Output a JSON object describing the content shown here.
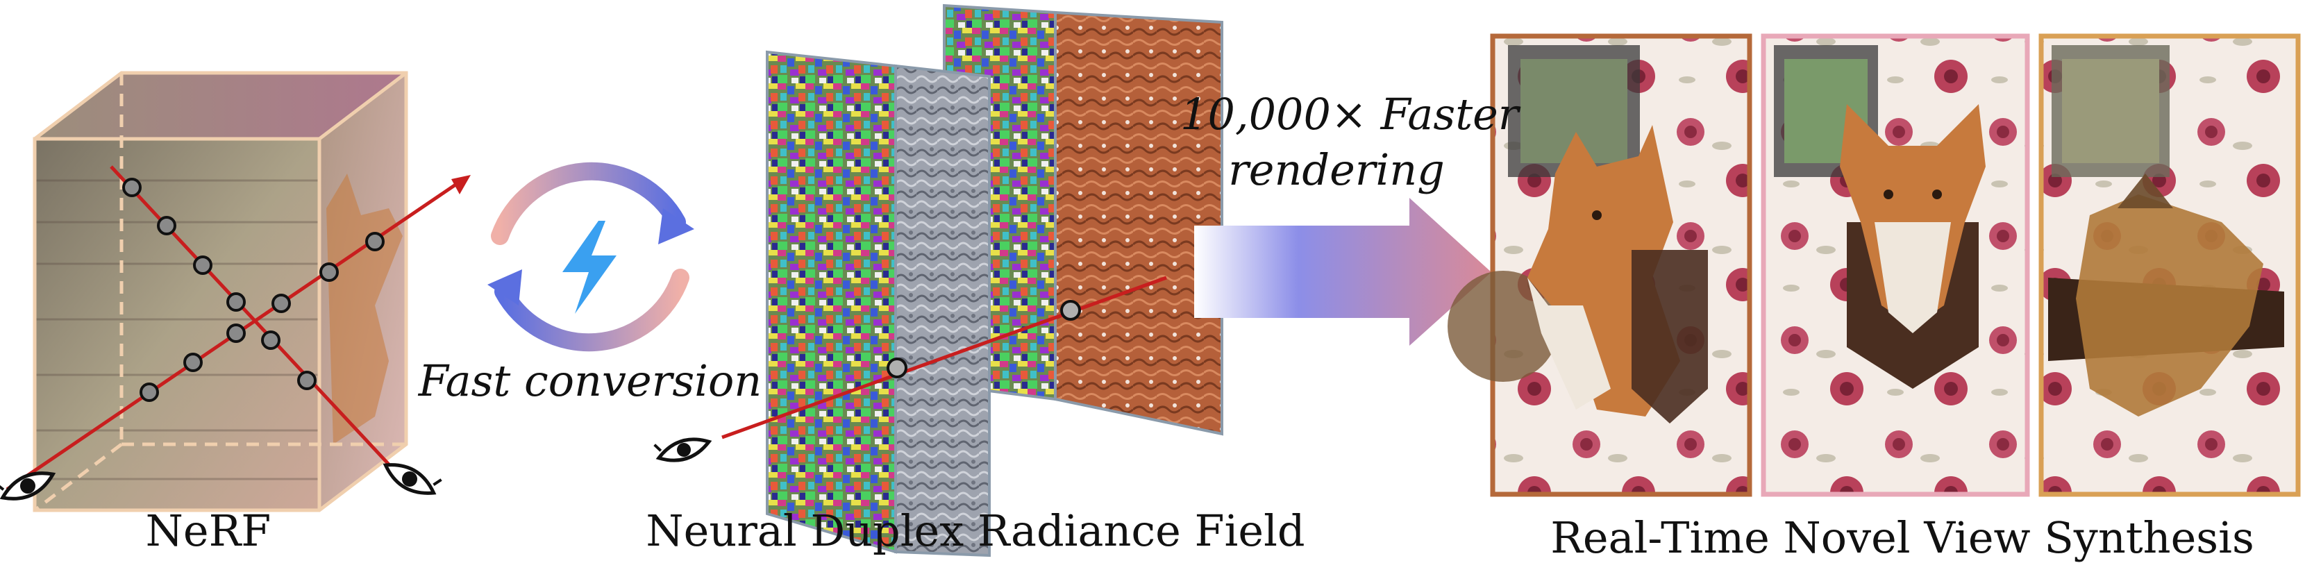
{
  "labels": {
    "nerf": "NeRF",
    "conversion": "Fast conversion",
    "duplex": "Neural Duplex Radiance Field",
    "speedup_line1": "10,000× Faster",
    "speedup_line2": "rendering",
    "synthesis": "Real-Time Novel View Synthesis"
  },
  "colors": {
    "ray": "#c81e1e",
    "cube_frame": "#f0cfae",
    "cube_fill": "#8f8670",
    "cube_dark": "#5a4a42",
    "fox_orange": "#c77a3d",
    "mesh_rust": "#b5603a",
    "mesh_gray": "#a7abb6",
    "frame_1": "#b5693a",
    "frame_2": "#e8a8b8",
    "frame_3": "#d9a055",
    "arrow_start": "#ffffff",
    "arrow_mid": "#8c8ee8",
    "arrow_end": "#d98a98",
    "cycle_blue": "#5b6fe0",
    "cycle_pink": "#f0a0a8",
    "lightning": "#3aa0f0",
    "wallpaper": "#f4ece6",
    "rose": "#b8415a"
  },
  "icons": [
    "eye-icon",
    "lightning-icon",
    "cycle-arrows-icon"
  ]
}
